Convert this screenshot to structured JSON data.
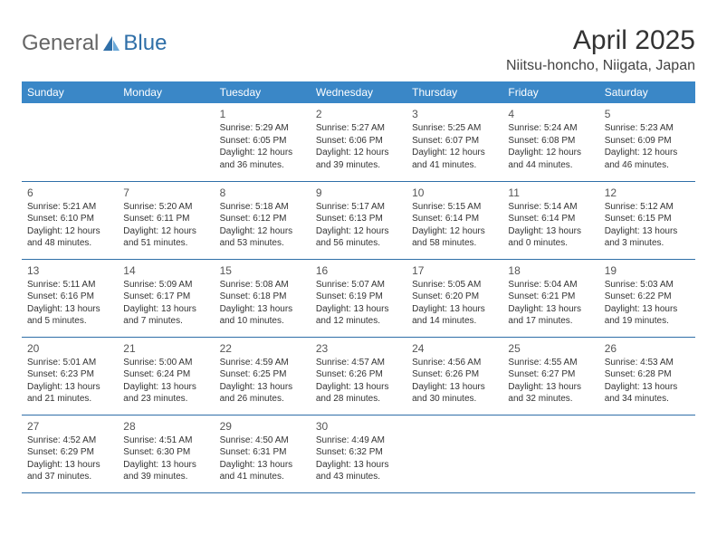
{
  "logo": {
    "text1": "General",
    "text2": "Blue"
  },
  "title": "April 2025",
  "location": "Niitsu-honcho, Niigata, Japan",
  "colors": {
    "header_bg": "#3a87c7",
    "header_text": "#ffffff",
    "cell_border": "#2f6fa8",
    "logo_accent": "#2f6fa8"
  },
  "daysOfWeek": [
    "Sunday",
    "Monday",
    "Tuesday",
    "Wednesday",
    "Thursday",
    "Friday",
    "Saturday"
  ],
  "firstDayOffset": 2,
  "cells": [
    {
      "n": 1,
      "sunrise": "5:29 AM",
      "sunset": "6:05 PM",
      "daylight": "12 hours and 36 minutes."
    },
    {
      "n": 2,
      "sunrise": "5:27 AM",
      "sunset": "6:06 PM",
      "daylight": "12 hours and 39 minutes."
    },
    {
      "n": 3,
      "sunrise": "5:25 AM",
      "sunset": "6:07 PM",
      "daylight": "12 hours and 41 minutes."
    },
    {
      "n": 4,
      "sunrise": "5:24 AM",
      "sunset": "6:08 PM",
      "daylight": "12 hours and 44 minutes."
    },
    {
      "n": 5,
      "sunrise": "5:23 AM",
      "sunset": "6:09 PM",
      "daylight": "12 hours and 46 minutes."
    },
    {
      "n": 6,
      "sunrise": "5:21 AM",
      "sunset": "6:10 PM",
      "daylight": "12 hours and 48 minutes."
    },
    {
      "n": 7,
      "sunrise": "5:20 AM",
      "sunset": "6:11 PM",
      "daylight": "12 hours and 51 minutes."
    },
    {
      "n": 8,
      "sunrise": "5:18 AM",
      "sunset": "6:12 PM",
      "daylight": "12 hours and 53 minutes."
    },
    {
      "n": 9,
      "sunrise": "5:17 AM",
      "sunset": "6:13 PM",
      "daylight": "12 hours and 56 minutes."
    },
    {
      "n": 10,
      "sunrise": "5:15 AM",
      "sunset": "6:14 PM",
      "daylight": "12 hours and 58 minutes."
    },
    {
      "n": 11,
      "sunrise": "5:14 AM",
      "sunset": "6:14 PM",
      "daylight": "13 hours and 0 minutes."
    },
    {
      "n": 12,
      "sunrise": "5:12 AM",
      "sunset": "6:15 PM",
      "daylight": "13 hours and 3 minutes."
    },
    {
      "n": 13,
      "sunrise": "5:11 AM",
      "sunset": "6:16 PM",
      "daylight": "13 hours and 5 minutes."
    },
    {
      "n": 14,
      "sunrise": "5:09 AM",
      "sunset": "6:17 PM",
      "daylight": "13 hours and 7 minutes."
    },
    {
      "n": 15,
      "sunrise": "5:08 AM",
      "sunset": "6:18 PM",
      "daylight": "13 hours and 10 minutes."
    },
    {
      "n": 16,
      "sunrise": "5:07 AM",
      "sunset": "6:19 PM",
      "daylight": "13 hours and 12 minutes."
    },
    {
      "n": 17,
      "sunrise": "5:05 AM",
      "sunset": "6:20 PM",
      "daylight": "13 hours and 14 minutes."
    },
    {
      "n": 18,
      "sunrise": "5:04 AM",
      "sunset": "6:21 PM",
      "daylight": "13 hours and 17 minutes."
    },
    {
      "n": 19,
      "sunrise": "5:03 AM",
      "sunset": "6:22 PM",
      "daylight": "13 hours and 19 minutes."
    },
    {
      "n": 20,
      "sunrise": "5:01 AM",
      "sunset": "6:23 PM",
      "daylight": "13 hours and 21 minutes."
    },
    {
      "n": 21,
      "sunrise": "5:00 AM",
      "sunset": "6:24 PM",
      "daylight": "13 hours and 23 minutes."
    },
    {
      "n": 22,
      "sunrise": "4:59 AM",
      "sunset": "6:25 PM",
      "daylight": "13 hours and 26 minutes."
    },
    {
      "n": 23,
      "sunrise": "4:57 AM",
      "sunset": "6:26 PM",
      "daylight": "13 hours and 28 minutes."
    },
    {
      "n": 24,
      "sunrise": "4:56 AM",
      "sunset": "6:26 PM",
      "daylight": "13 hours and 30 minutes."
    },
    {
      "n": 25,
      "sunrise": "4:55 AM",
      "sunset": "6:27 PM",
      "daylight": "13 hours and 32 minutes."
    },
    {
      "n": 26,
      "sunrise": "4:53 AM",
      "sunset": "6:28 PM",
      "daylight": "13 hours and 34 minutes."
    },
    {
      "n": 27,
      "sunrise": "4:52 AM",
      "sunset": "6:29 PM",
      "daylight": "13 hours and 37 minutes."
    },
    {
      "n": 28,
      "sunrise": "4:51 AM",
      "sunset": "6:30 PM",
      "daylight": "13 hours and 39 minutes."
    },
    {
      "n": 29,
      "sunrise": "4:50 AM",
      "sunset": "6:31 PM",
      "daylight": "13 hours and 41 minutes."
    },
    {
      "n": 30,
      "sunrise": "4:49 AM",
      "sunset": "6:32 PM",
      "daylight": "13 hours and 43 minutes."
    }
  ]
}
